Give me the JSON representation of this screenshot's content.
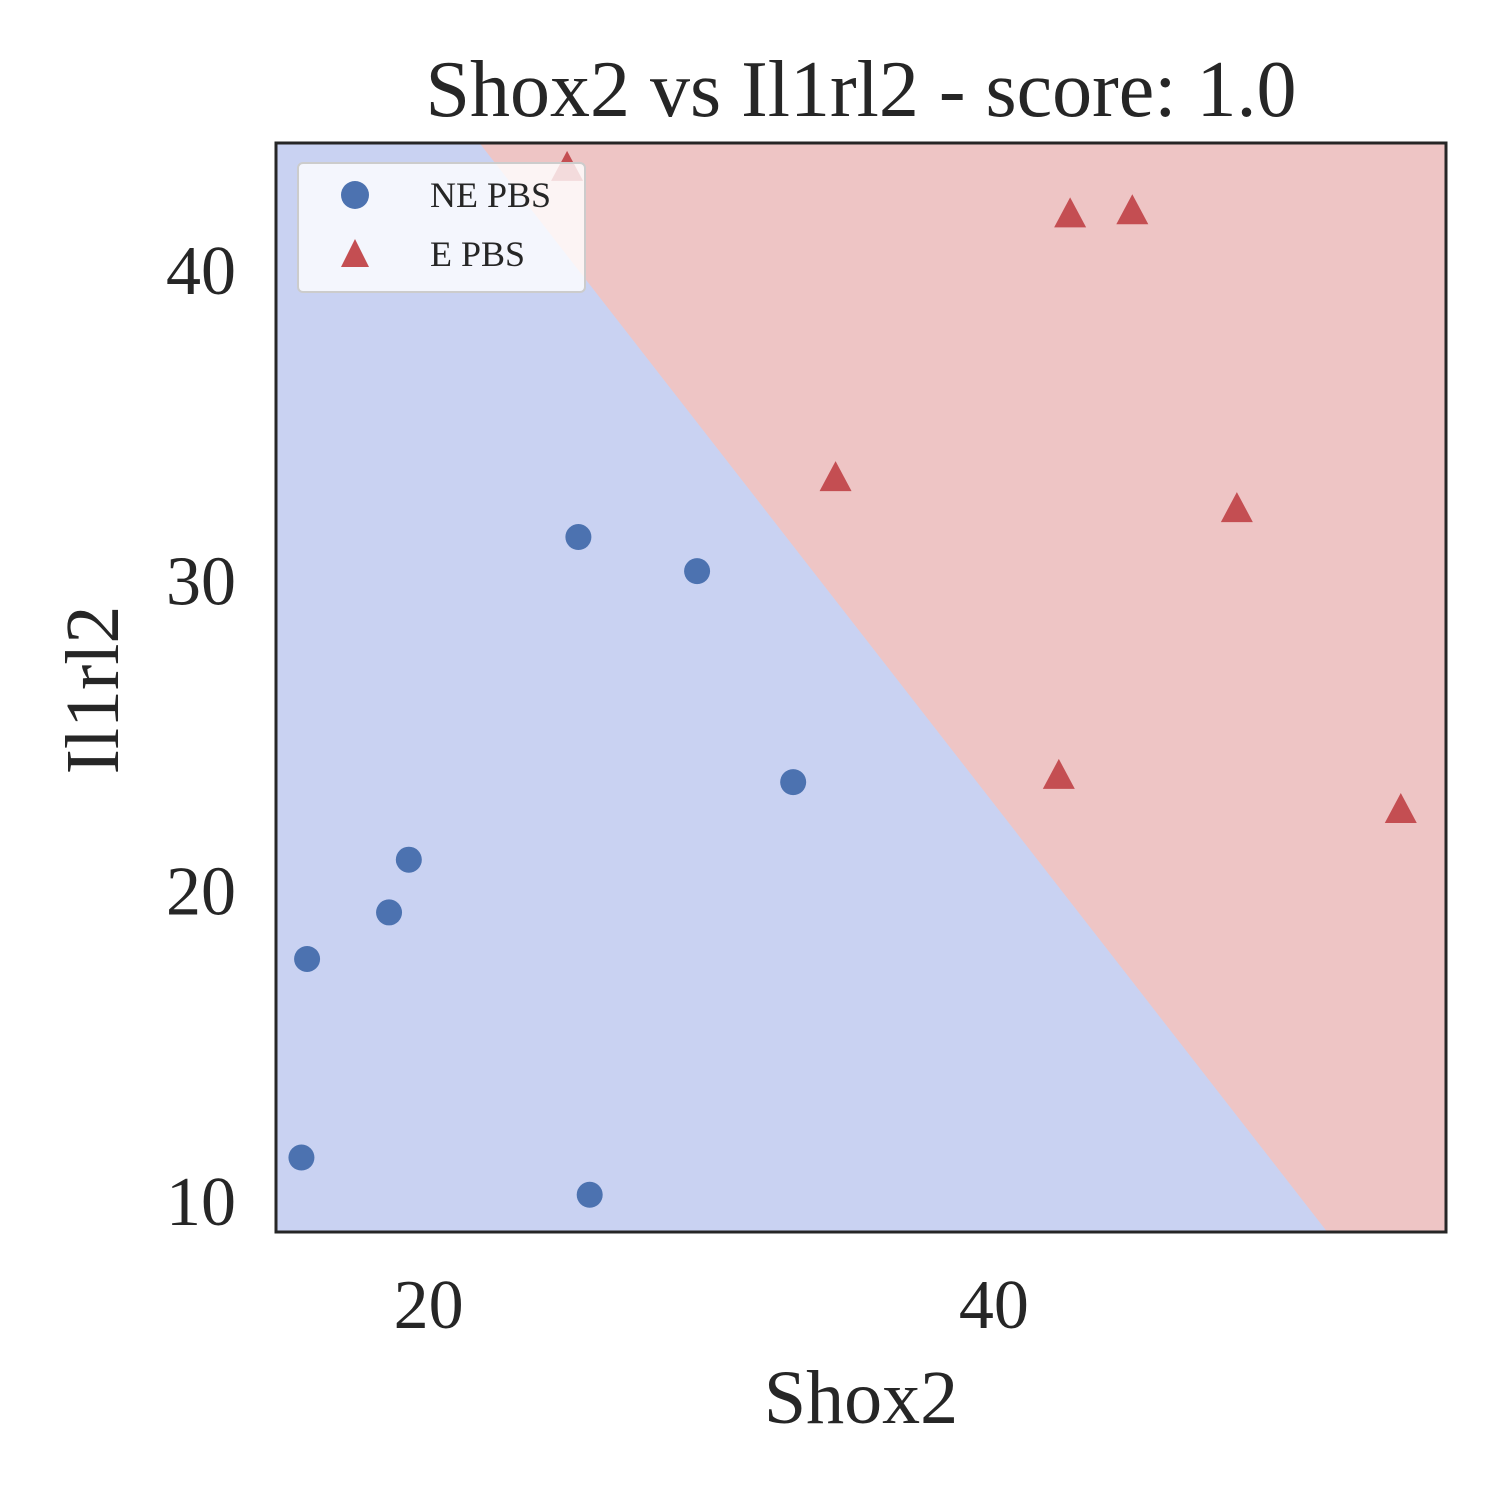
{
  "chart_data": {
    "type": "scatter",
    "title": "Shox2 vs Il1rl2 - score: 1.0",
    "xlabel": "Shox2",
    "ylabel": "Il1rl2",
    "xlim": [
      14.6,
      56.0
    ],
    "ylim": [
      9.0,
      44.1
    ],
    "xticks": [
      20,
      40
    ],
    "yticks": [
      10,
      20,
      30,
      40
    ],
    "grid": false,
    "legend_position": "upper-left",
    "regions": {
      "ne_color": "#c9d2f2",
      "e_color": "#eec5c5",
      "boundary_line": [
        [
          21.8,
          44.1
        ],
        [
          51.8,
          9.0
        ]
      ],
      "e_side": "upper-right"
    },
    "series": [
      {
        "name": "NE PBS",
        "marker": "circle",
        "color": "#4c72b0",
        "x": [
          25.3,
          29.5,
          32.9,
          19.3,
          18.6,
          15.7,
          15.5,
          25.7
        ],
        "y": [
          31.4,
          30.3,
          23.5,
          21.0,
          19.3,
          17.8,
          11.4,
          10.2
        ]
      },
      {
        "name": "E PBS",
        "marker": "triangle",
        "color": "#c44e52",
        "x": [
          24.9,
          42.7,
          44.9,
          34.4,
          48.6,
          42.3,
          54.4
        ],
        "y": [
          43.3,
          41.8,
          41.9,
          33.3,
          32.3,
          23.7,
          22.6
        ]
      }
    ]
  }
}
